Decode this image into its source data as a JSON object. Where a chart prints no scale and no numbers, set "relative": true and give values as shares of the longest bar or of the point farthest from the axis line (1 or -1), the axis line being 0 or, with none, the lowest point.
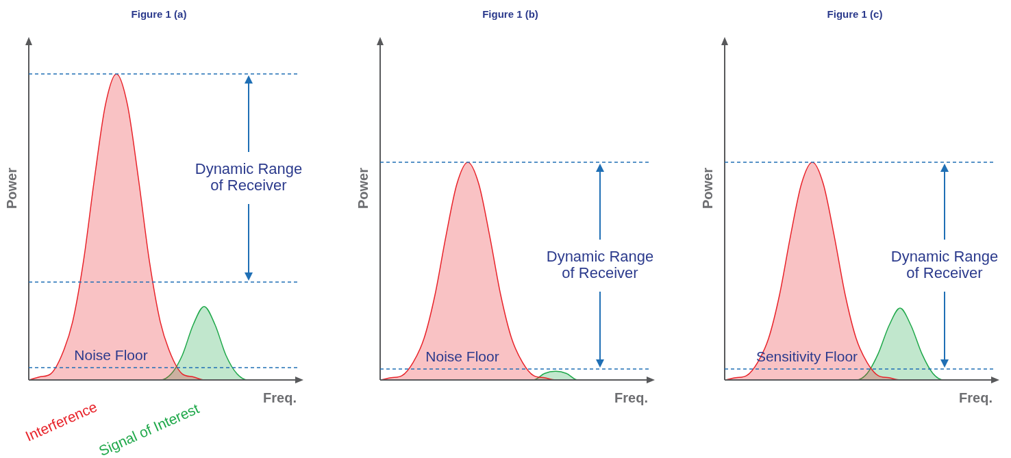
{
  "chart_data": [
    {
      "type": "area",
      "title": "Figure 1 (a)",
      "xlabel": "Freq.",
      "ylabel": "Power",
      "relative": true,
      "tick_labels": false,
      "categories": [
        null,
        null,
        null,
        null,
        null,
        null,
        null,
        null,
        null,
        null,
        null,
        null,
        null,
        null,
        null,
        null,
        null,
        null,
        null,
        null,
        null,
        null,
        null,
        null,
        null
      ],
      "series": [
        {
          "name": "Interference",
          "color": "#e8232a",
          "values": [
            0,
            0.01,
            0.02,
            0.08,
            0.19,
            0.39,
            0.66,
            0.9,
            1,
            0.9,
            0.66,
            0.39,
            0.19,
            0.08,
            0.02,
            0.01,
            0,
            0,
            0,
            0,
            0,
            0,
            0,
            0,
            0
          ]
        },
        {
          "name": "Signal of Interest",
          "color": "#1fa84a",
          "values": [
            0,
            0,
            0,
            0,
            0,
            0,
            0,
            0,
            0,
            0,
            0,
            0,
            0,
            0.02,
            0.08,
            0.18,
            0.24,
            0.18,
            0.08,
            0.02,
            0,
            0,
            0,
            0,
            0
          ]
        }
      ],
      "ref_lines": [
        {
          "axis": "y",
          "value": 1,
          "color": "#1f6fb5",
          "line_style": "dashed"
        },
        {
          "axis": "y",
          "value": 0.32,
          "color": "#1f6fb5",
          "line_style": "dashed"
        },
        {
          "axis": "y",
          "value": 0.04,
          "label": "Noise Floor",
          "color": "#1f6fb5",
          "line_style": "dashed"
        }
      ],
      "annotations": [
        "Dynamic Range of Receiver"
      ]
    },
    {
      "type": "area",
      "title": "Figure 1 (b)",
      "xlabel": "Freq.",
      "ylabel": "Power",
      "relative": true,
      "tick_labels": false,
      "categories": [
        null,
        null,
        null,
        null,
        null,
        null,
        null,
        null,
        null,
        null,
        null,
        null,
        null,
        null,
        null,
        null,
        null,
        null,
        null,
        null,
        null,
        null,
        null,
        null,
        null
      ],
      "series": [
        {
          "color": "#e8232a",
          "values": [
            0,
            0.01,
            0.02,
            0.08,
            0.19,
            0.39,
            0.66,
            0.9,
            1,
            0.9,
            0.66,
            0.39,
            0.19,
            0.08,
            0.02,
            0.01,
            0,
            0,
            0,
            0,
            0,
            0,
            0,
            0,
            0
          ]
        },
        {
          "color": "#1fa84a",
          "values": [
            0,
            0,
            0,
            0,
            0,
            0,
            0,
            0,
            0,
            0,
            0,
            0,
            0,
            0,
            0,
            0.03,
            0.04,
            0.03,
            0,
            0,
            0,
            0,
            0,
            0,
            0
          ]
        }
      ],
      "ref_lines": [
        {
          "axis": "y",
          "value": 1,
          "color": "#1f6fb5",
          "line_style": "dashed"
        },
        {
          "axis": "y",
          "value": 0.05,
          "label": "Noise Floor",
          "color": "#1f6fb5",
          "line_style": "dashed"
        }
      ],
      "annotations": [
        "Dynamic Range of Receiver"
      ]
    },
    {
      "type": "area",
      "title": "Figure 1 (c)",
      "xlabel": "Freq.",
      "ylabel": "Power",
      "relative": true,
      "tick_labels": false,
      "categories": [
        null,
        null,
        null,
        null,
        null,
        null,
        null,
        null,
        null,
        null,
        null,
        null,
        null,
        null,
        null,
        null,
        null,
        null,
        null,
        null,
        null,
        null,
        null,
        null,
        null
      ],
      "series": [
        {
          "color": "#e8232a",
          "values": [
            0,
            0.01,
            0.02,
            0.08,
            0.19,
            0.39,
            0.66,
            0.9,
            1,
            0.9,
            0.66,
            0.39,
            0.19,
            0.08,
            0.02,
            0.01,
            0,
            0,
            0,
            0,
            0,
            0,
            0,
            0,
            0
          ]
        },
        {
          "color": "#1fa84a",
          "values": [
            0,
            0,
            0,
            0,
            0,
            0,
            0,
            0,
            0,
            0,
            0,
            0,
            0,
            0.03,
            0.12,
            0.25,
            0.33,
            0.25,
            0.12,
            0.03,
            0,
            0,
            0,
            0,
            0
          ]
        }
      ],
      "ref_lines": [
        {
          "axis": "y",
          "value": 1,
          "color": "#1f6fb5",
          "line_style": "dashed"
        },
        {
          "axis": "y",
          "value": 0.05,
          "label": "Sensitivity Floor",
          "color": "#1f6fb5",
          "line_style": "dashed"
        }
      ],
      "annotations": [
        "Dynamic Range of Receiver"
      ]
    }
  ]
}
